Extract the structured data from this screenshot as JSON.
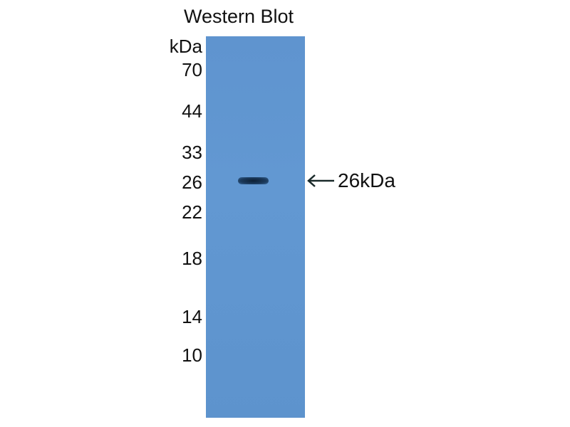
{
  "title": "Western Blot",
  "unit_label": "kDa",
  "markers": [
    "70",
    "44",
    "33",
    "26",
    "22",
    "18",
    "14",
    "10"
  ],
  "band_annotation": "26kDa",
  "colors": {
    "membrane": "#5f94cf",
    "band": "#13283f"
  }
}
